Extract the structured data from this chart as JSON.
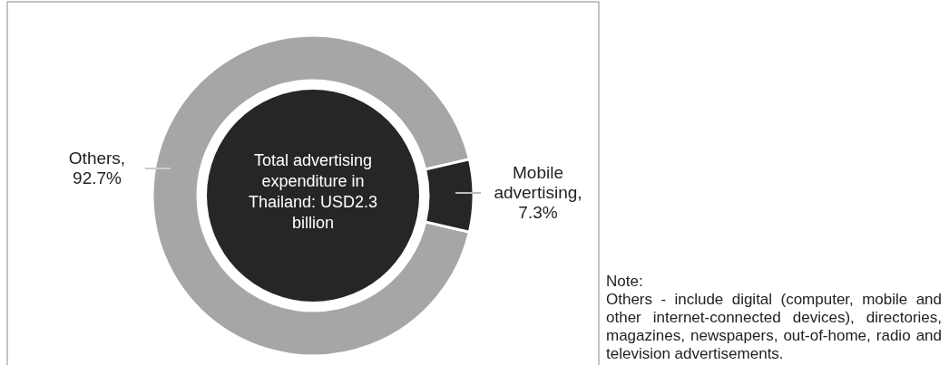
{
  "chart_data": {
    "type": "donut",
    "title": "Total advertising expenditure in Thailand: USD2.3 billion",
    "categories": [
      "Others",
      "Mobile advertising"
    ],
    "values": [
      92.7,
      7.3
    ],
    "value_labels": [
      ", 92.7%",
      ", 7.3%"
    ],
    "colors": [
      "#a6a6a6",
      "#262626"
    ],
    "annotations": [
      "Note:",
      "Others - include digital (computer, mobile and other internet-connected devices), directories, magazines, newspapers, out-of-home, radio and television advertisements."
    ]
  }
}
